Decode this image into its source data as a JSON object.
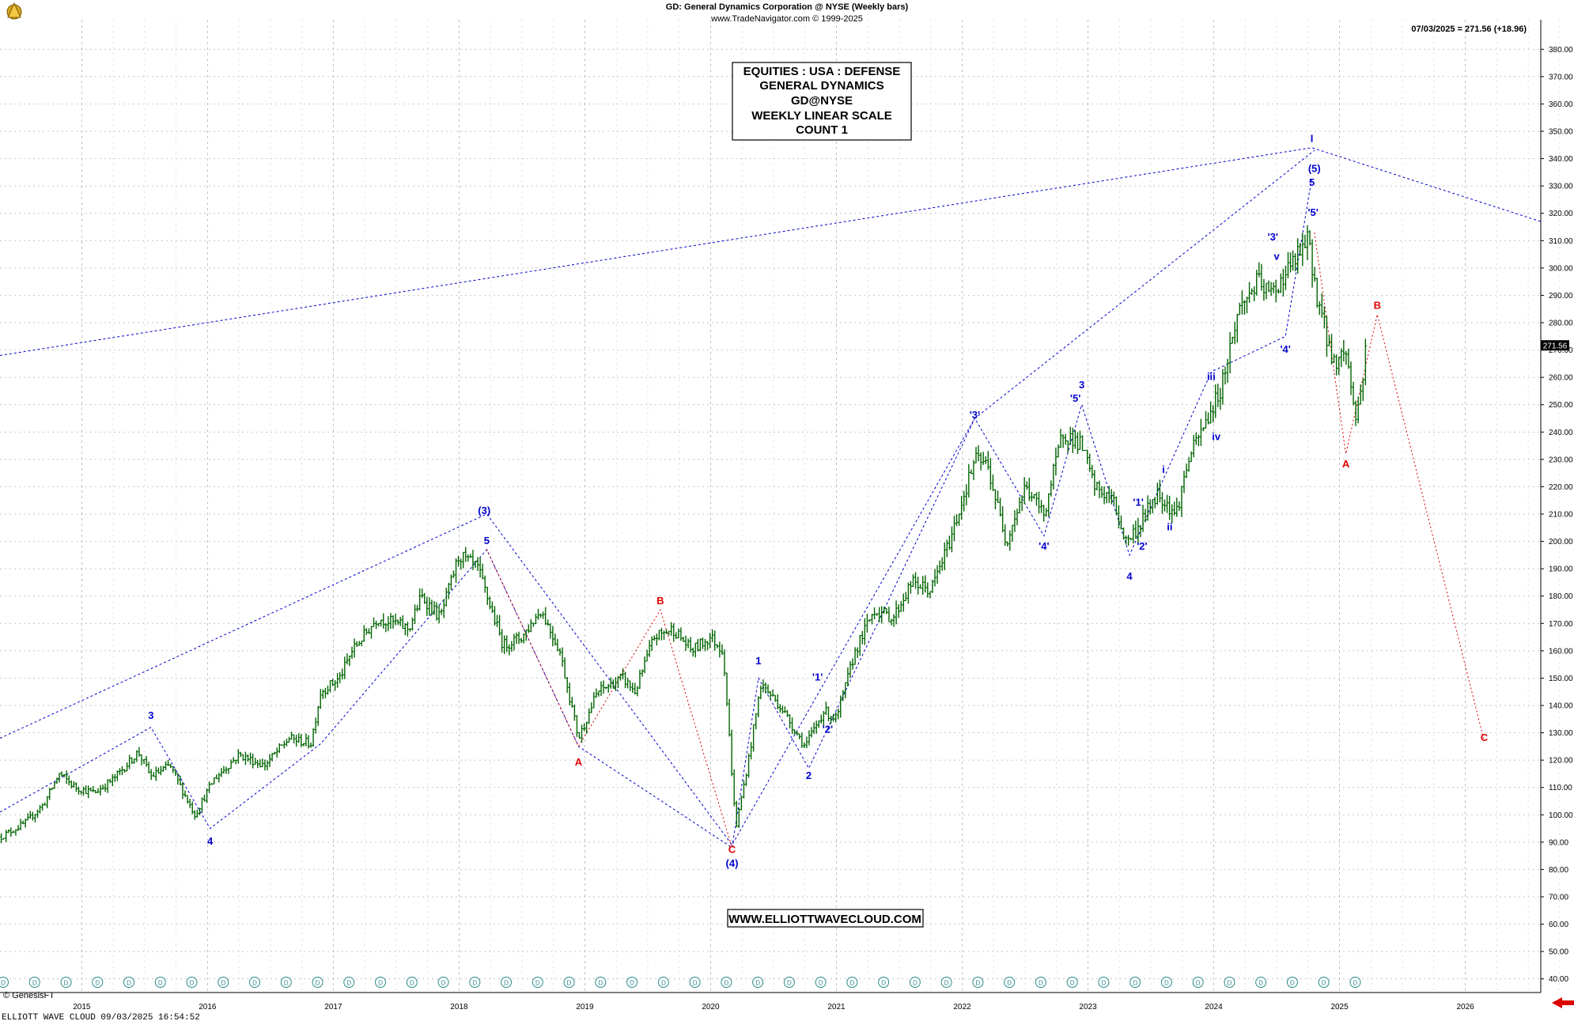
{
  "header": {
    "title": "GD:  General Dynamics Corporation @ NYSE  (Weekly bars)",
    "subtitle": "www.TradeNavigator.com © 1999-2025",
    "last_quote": "07/03/2025 = 271.56 (+18.96)"
  },
  "info_box": {
    "lines": [
      "EQUITIES : USA : DEFENSE",
      "GENERAL DYNAMICS",
      "GD@NYSE",
      "WEEKLY LINEAR SCALE",
      "COUNT 1"
    ]
  },
  "website": "WWW.ELLIOTTWAVECLOUD.COM",
  "footer": {
    "left": "ELLIOTT WAVE CLOUD   09/03/2025 16:54:52",
    "genesis": "© GenesisFT"
  },
  "price_tag": "271.56",
  "colors": {
    "bars": "#006400",
    "wave_blue": "#0000cc",
    "wave_red": "#dd0000",
    "grid": "#b0b0b0",
    "price_tag_bg": "#000000",
    "arrow": "#dd0000"
  },
  "chart_data": {
    "type": "ohlc",
    "title": "GD:  General Dynamics Corporation @ NYSE  (Weekly bars)",
    "x_axis": {
      "labels": [
        "2015",
        "2016",
        "2017",
        "2018",
        "2019",
        "2020",
        "2021",
        "2022",
        "2023",
        "2024",
        "2025",
        "2026"
      ],
      "range": [
        2014.35,
        2026.6
      ]
    },
    "y_axis": {
      "range": [
        35,
        385
      ],
      "ticks": [
        40,
        50,
        60,
        70,
        80,
        90,
        100,
        110,
        120,
        130,
        140,
        150,
        160,
        170,
        180,
        190,
        200,
        210,
        220,
        230,
        240,
        250,
        260,
        270,
        280,
        290,
        300,
        310,
        320,
        330,
        340,
        350,
        360,
        370,
        380
      ],
      "suffix": ".00",
      "grid": true
    },
    "price_path": [
      [
        2014.36,
        92
      ],
      [
        2014.55,
        97
      ],
      [
        2014.7,
        104
      ],
      [
        2014.82,
        115
      ],
      [
        2014.95,
        110
      ],
      [
        2015.1,
        108
      ],
      [
        2015.25,
        113
      ],
      [
        2015.45,
        123
      ],
      [
        2015.55,
        114
      ],
      [
        2015.7,
        118
      ],
      [
        2015.9,
        100
      ],
      [
        2016.05,
        113
      ],
      [
        2016.25,
        122
      ],
      [
        2016.45,
        118
      ],
      [
        2016.65,
        128
      ],
      [
        2016.82,
        126
      ],
      [
        2016.9,
        145
      ],
      [
        2017.05,
        150
      ],
      [
        2017.15,
        160
      ],
      [
        2017.35,
        172
      ],
      [
        2017.5,
        170
      ],
      [
        2017.6,
        168
      ],
      [
        2017.7,
        180
      ],
      [
        2017.85,
        172
      ],
      [
        2018.0,
        195
      ],
      [
        2018.15,
        190
      ],
      [
        2018.35,
        162
      ],
      [
        2018.5,
        165
      ],
      [
        2018.65,
        175
      ],
      [
        2018.8,
        160
      ],
      [
        2018.95,
        128
      ],
      [
        2019.1,
        145
      ],
      [
        2019.3,
        150
      ],
      [
        2019.4,
        145
      ],
      [
        2019.55,
        165
      ],
      [
        2019.7,
        168
      ],
      [
        2019.85,
        160
      ],
      [
        2020.0,
        165
      ],
      [
        2020.1,
        160
      ],
      [
        2020.2,
        95
      ],
      [
        2020.3,
        120
      ],
      [
        2020.4,
        148
      ],
      [
        2020.55,
        140
      ],
      [
        2020.75,
        125
      ],
      [
        2020.9,
        138
      ],
      [
        2021.0,
        135
      ],
      [
        2021.15,
        160
      ],
      [
        2021.3,
        175
      ],
      [
        2021.45,
        172
      ],
      [
        2021.6,
        185
      ],
      [
        2021.75,
        182
      ],
      [
        2021.9,
        200
      ],
      [
        2022.1,
        230
      ],
      [
        2022.2,
        228
      ],
      [
        2022.35,
        200
      ],
      [
        2022.5,
        220
      ],
      [
        2022.65,
        210
      ],
      [
        2022.8,
        240
      ],
      [
        2022.95,
        235
      ],
      [
        2023.05,
        220
      ],
      [
        2023.2,
        215
      ],
      [
        2023.3,
        200
      ],
      [
        2023.4,
        205
      ],
      [
        2023.55,
        218
      ],
      [
        2023.7,
        210
      ],
      [
        2023.8,
        230
      ],
      [
        2023.95,
        245
      ],
      [
        2024.05,
        255
      ],
      [
        2024.2,
        285
      ],
      [
        2024.35,
        295
      ],
      [
        2024.45,
        290
      ],
      [
        2024.6,
        300
      ],
      [
        2024.75,
        310
      ],
      [
        2024.82,
        290
      ],
      [
        2024.95,
        265
      ],
      [
        2025.05,
        270
      ],
      [
        2025.13,
        245
      ],
      [
        2025.18,
        258
      ],
      [
        2025.22,
        271.56
      ]
    ],
    "last_value": 271.56,
    "wave_labels": [
      {
        "text": "3",
        "x": 2015.55,
        "y": 136.5,
        "color": "blue"
      },
      {
        "text": "4",
        "x": 2016.02,
        "y": 90.5,
        "color": "blue"
      },
      {
        "text": "(3)",
        "x": 2018.2,
        "y": 211.5,
        "color": "blue"
      },
      {
        "text": "5",
        "x": 2018.22,
        "y": 200.5,
        "color": "blue"
      },
      {
        "text": "A",
        "x": 2018.95,
        "y": 119.5,
        "color": "red"
      },
      {
        "text": "B",
        "x": 2019.6,
        "y": 178.5,
        "color": "red"
      },
      {
        "text": "C",
        "x": 2020.17,
        "y": 87.5,
        "color": "red"
      },
      {
        "text": "(4)",
        "x": 2020.17,
        "y": 82.5,
        "color": "blue"
      },
      {
        "text": "1",
        "x": 2020.38,
        "y": 156.5,
        "color": "blue"
      },
      {
        "text": "'1'",
        "x": 2020.85,
        "y": 150.5,
        "color": "blue"
      },
      {
        "text": "'2'",
        "x": 2020.93,
        "y": 131.5,
        "color": "blue"
      },
      {
        "text": "2",
        "x": 2020.78,
        "y": 114.5,
        "color": "blue"
      },
      {
        "text": "'3'",
        "x": 2022.1,
        "y": 246.5,
        "color": "blue"
      },
      {
        "text": "'4'",
        "x": 2022.65,
        "y": 198.5,
        "color": "blue"
      },
      {
        "text": "'5'",
        "x": 2022.9,
        "y": 252.5,
        "color": "blue"
      },
      {
        "text": "3",
        "x": 2022.95,
        "y": 257.5,
        "color": "blue"
      },
      {
        "text": "'1'",
        "x": 2023.4,
        "y": 214.5,
        "color": "blue"
      },
      {
        "text": "'2'",
        "x": 2023.43,
        "y": 198.5,
        "color": "blue"
      },
      {
        "text": "4",
        "x": 2023.33,
        "y": 187.5,
        "color": "blue"
      },
      {
        "text": "i",
        "x": 2023.6,
        "y": 226.5,
        "color": "blue"
      },
      {
        "text": "ii",
        "x": 2023.65,
        "y": 205.5,
        "color": "blue"
      },
      {
        "text": "iii",
        "x": 2023.98,
        "y": 260.5,
        "color": "blue"
      },
      {
        "text": "iv",
        "x": 2024.02,
        "y": 238.5,
        "color": "blue"
      },
      {
        "text": "'3'",
        "x": 2024.47,
        "y": 311.5,
        "color": "blue"
      },
      {
        "text": "v",
        "x": 2024.5,
        "y": 304.5,
        "color": "blue"
      },
      {
        "text": "'4'",
        "x": 2024.57,
        "y": 270.5,
        "color": "blue"
      },
      {
        "text": "(5)",
        "x": 2024.8,
        "y": 336.5,
        "color": "blue"
      },
      {
        "text": "5",
        "x": 2024.78,
        "y": 331.5,
        "color": "blue"
      },
      {
        "text": "'5'",
        "x": 2024.79,
        "y": 320.5,
        "color": "blue"
      },
      {
        "text": "I",
        "x": 2024.78,
        "y": 347.5,
        "color": "blue"
      },
      {
        "text": "A",
        "x": 2025.05,
        "y": 228.5,
        "color": "red"
      },
      {
        "text": "B",
        "x": 2025.3,
        "y": 286.5,
        "color": "red"
      },
      {
        "text": "C",
        "x": 2026.15,
        "y": 128.5,
        "color": "red"
      }
    ],
    "wave_lines_blue": [
      [
        [
          2014.35,
          101
        ],
        [
          2015.55,
          132
        ],
        [
          2016.02,
          95
        ],
        [
          2016.9,
          126
        ],
        [
          2018.22,
          197
        ],
        [
          2018.95,
          125
        ],
        [
          2020.17,
          88
        ],
        [
          2020.38,
          150
        ],
        [
          2020.78,
          117
        ],
        [
          2022.1,
          245
        ],
        [
          2022.65,
          202
        ],
        [
          2022.95,
          250
        ],
        [
          2023.33,
          195
        ],
        [
          2023.98,
          262
        ],
        [
          2024.57,
          275
        ],
        [
          2024.78,
          333
        ]
      ],
      [
        [
          2014.35,
          128
        ],
        [
          2018.22,
          210
        ],
        [
          2020.17,
          89
        ],
        [
          2022.1,
          245
        ],
        [
          2024.8,
          343
        ]
      ],
      [
        [
          2014.35,
          268
        ],
        [
          2024.78,
          344
        ],
        [
          2026.6,
          317
        ]
      ]
    ],
    "wave_lines_red": [
      [
        [
          2018.22,
          197
        ],
        [
          2018.95,
          125
        ],
        [
          2019.6,
          175
        ],
        [
          2020.17,
          88
        ]
      ],
      [
        [
          2024.8,
          313
        ],
        [
          2025.05,
          232
        ],
        [
          2025.3,
          283
        ],
        [
          2026.15,
          127
        ]
      ]
    ]
  }
}
